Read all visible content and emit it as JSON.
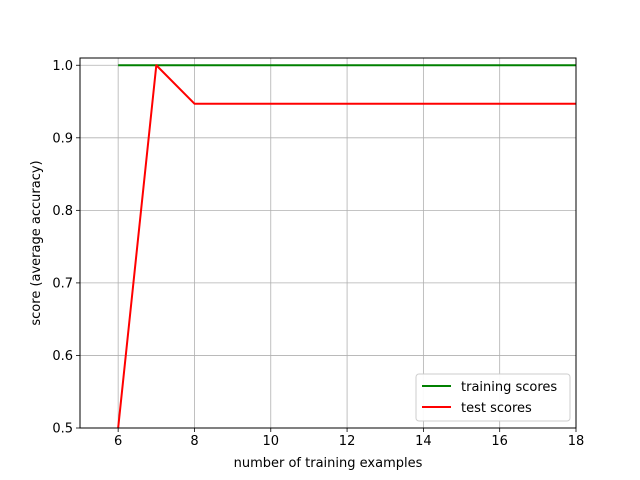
{
  "chart_data": {
    "type": "line",
    "xlabel": "number of training examples",
    "ylabel": "score (average accuracy)",
    "xlim": [
      5,
      18
    ],
    "ylim": [
      0.5,
      1.01
    ],
    "xticks": [
      6,
      8,
      10,
      12,
      14,
      16,
      18
    ],
    "yticks": [
      0.5,
      0.6,
      0.7,
      0.8,
      0.9,
      1.0
    ],
    "xtick_labels": [
      "6",
      "8",
      "10",
      "12",
      "14",
      "16",
      "18"
    ],
    "ytick_labels": [
      "0.5",
      "0.6",
      "0.7",
      "0.8",
      "0.9",
      "1.0"
    ],
    "grid": true,
    "legend_position": "lower-right",
    "series": [
      {
        "name": "training scores",
        "color": "#008000",
        "x": [
          6,
          7,
          8,
          9,
          10,
          11,
          12,
          13,
          14,
          15,
          16,
          17,
          18
        ],
        "y": [
          1.0,
          1.0,
          1.0,
          1.0,
          1.0,
          1.0,
          1.0,
          1.0,
          1.0,
          1.0,
          1.0,
          1.0,
          1.0
        ]
      },
      {
        "name": "test scores",
        "color": "#ff0000",
        "x": [
          6,
          7,
          8,
          9,
          10,
          11,
          12,
          13,
          14,
          15,
          16,
          17,
          18
        ],
        "y": [
          0.5,
          1.0,
          0.947,
          0.947,
          0.947,
          0.947,
          0.947,
          0.947,
          0.947,
          0.947,
          0.947,
          0.947,
          0.947
        ]
      }
    ]
  }
}
